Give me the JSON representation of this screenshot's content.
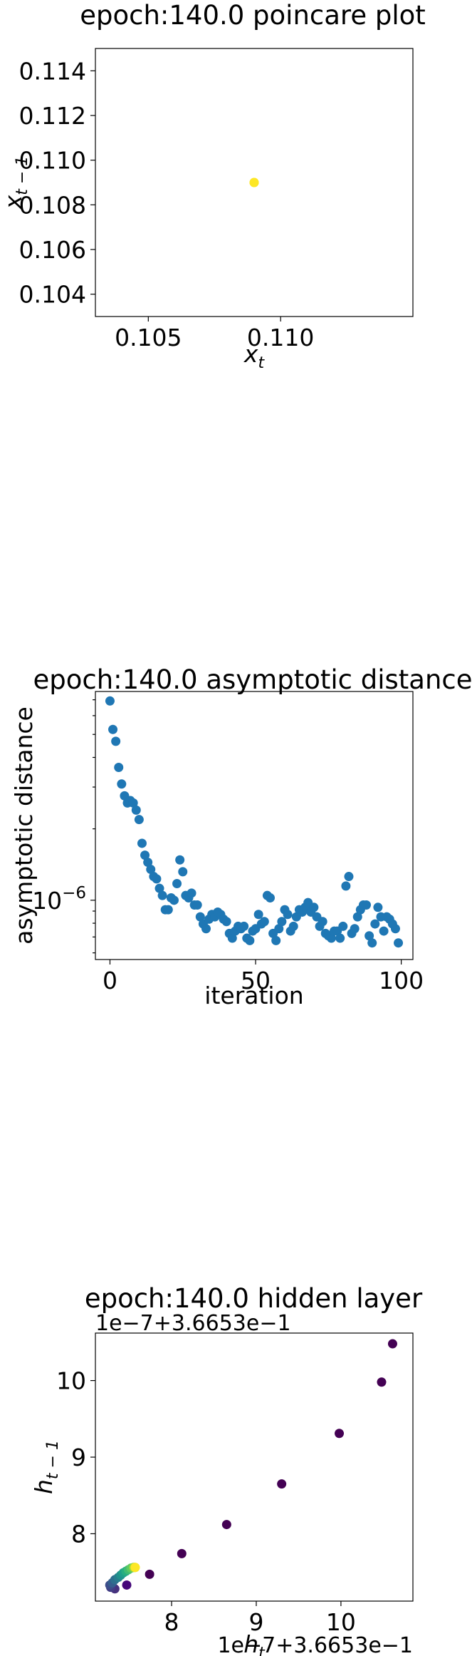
{
  "chart_data": [
    {
      "type": "scatter",
      "title": "epoch:140.0 poincare plot",
      "xlabel": "x_t",
      "ylabel": "x_{t-1}",
      "xlim": [
        0.103,
        0.115
      ],
      "ylim": [
        0.103,
        0.115
      ],
      "xticks": [
        0.105,
        0.11
      ],
      "xtick_labels": [
        "0.105",
        "0.110"
      ],
      "yticks": [
        0.104,
        0.106,
        0.108,
        0.11,
        0.112,
        0.114
      ],
      "ytick_labels": [
        "0.104",
        "0.106",
        "0.108",
        "0.110",
        "0.112",
        "0.114"
      ],
      "points": [
        {
          "x": 0.109,
          "y": 0.109,
          "color": "#fde725"
        },
        {
          "x": 0.109,
          "y": 0.109,
          "color": "#fde725"
        },
        {
          "x": 0.109,
          "y": 0.109,
          "color": "#fde725"
        }
      ],
      "grid": false
    },
    {
      "type": "scatter",
      "title": "epoch:140.0 asymptotic distance",
      "xlabel": "iteration",
      "ylabel": "asymptotic distance",
      "yscale": "log",
      "xlim": [
        -5,
        104
      ],
      "ylim_log10": [
        -6.25,
        -5.12
      ],
      "xticks": [
        0,
        50,
        100
      ],
      "xtick_labels": [
        "0",
        "50",
        "100"
      ],
      "ytick_label": "10^-6",
      "color": "#1f77b4",
      "y_log10": [
        -5.16,
        -5.28,
        -5.33,
        -5.44,
        -5.51,
        -5.56,
        -5.59,
        -5.58,
        -5.59,
        -5.62,
        -5.66,
        -5.76,
        -5.81,
        -5.84,
        -5.87,
        -5.9,
        -5.91,
        -5.95,
        -5.98,
        -6.04,
        -6.04,
        -5.99,
        -6.0,
        -5.93,
        -5.83,
        -5.88,
        -5.98,
        -5.99,
        -5.97,
        -6.02,
        -6.02,
        -6.07,
        -6.1,
        -6.12,
        -6.08,
        -6.06,
        -6.07,
        -6.05,
        -6.06,
        -6.08,
        -6.09,
        -6.14,
        -6.16,
        -6.13,
        -6.11,
        -6.12,
        -6.11,
        -6.16,
        -6.17,
        -6.13,
        -6.12,
        -6.06,
        -6.1,
        -6.09,
        -5.98,
        -5.99,
        -6.14,
        -6.17,
        -6.12,
        -6.09,
        -6.04,
        -6.06,
        -6.13,
        -6.11,
        -6.07,
        -6.04,
        -6.05,
        -6.03,
        -6.01,
        -6.05,
        -6.03,
        -6.07,
        -6.11,
        -6.09,
        -6.14,
        -6.15,
        -6.16,
        -6.13,
        -6.13,
        -6.16,
        -6.11,
        -5.94,
        -5.9,
        -6.14,
        -6.12,
        -6.07,
        -6.04,
        -6.02,
        -6.02,
        -6.15,
        -6.18,
        -6.1,
        -6.03,
        -6.07,
        -6.13,
        -6.07,
        -6.08,
        -6.1,
        -6.12,
        -6.18
      ],
      "grid": false
    },
    {
      "type": "scatter",
      "title": "epoch:140.0 hidden layer",
      "xlabel": "h_t",
      "ylabel": "h_{t-1}",
      "x_offset_label": "1e−7+3.6653e−1",
      "y_offset_label": "1e−7+3.6653e−1",
      "xlim": [
        7.1,
        10.85
      ],
      "ylim": [
        7.12,
        10.62
      ],
      "xticks": [
        8,
        9,
        10
      ],
      "xtick_labels": [
        "8",
        "9",
        "10"
      ],
      "yticks": [
        8,
        9,
        10
      ],
      "ytick_labels": [
        "8",
        "9",
        "10"
      ],
      "points": [
        {
          "x": 10.61,
          "y": 10.48,
          "color": "#440154"
        },
        {
          "x": 10.48,
          "y": 9.98,
          "color": "#440154"
        },
        {
          "x": 9.98,
          "y": 9.31,
          "color": "#440154"
        },
        {
          "x": 9.3,
          "y": 8.65,
          "color": "#440154"
        },
        {
          "x": 8.65,
          "y": 8.12,
          "color": "#440154"
        },
        {
          "x": 8.12,
          "y": 7.74,
          "color": "#440154"
        },
        {
          "x": 7.74,
          "y": 7.47,
          "color": "#440154"
        },
        {
          "x": 7.47,
          "y": 7.33,
          "color": "#45077a"
        },
        {
          "x": 7.33,
          "y": 7.28,
          "color": "#46327e"
        },
        {
          "x": 7.28,
          "y": 7.3,
          "color": "#433e85"
        },
        {
          "x": 7.27,
          "y": 7.33,
          "color": "#3d4d8a"
        },
        {
          "x": 7.3,
          "y": 7.36,
          "color": "#355e8d"
        },
        {
          "x": 7.33,
          "y": 7.4,
          "color": "#2e6f8e"
        },
        {
          "x": 7.37,
          "y": 7.43,
          "color": "#277f8e"
        },
        {
          "x": 7.4,
          "y": 7.46,
          "color": "#21918c"
        },
        {
          "x": 7.43,
          "y": 7.49,
          "color": "#1fa088"
        },
        {
          "x": 7.46,
          "y": 7.51,
          "color": "#28ae80"
        },
        {
          "x": 7.49,
          "y": 7.53,
          "color": "#3fbc73"
        },
        {
          "x": 7.52,
          "y": 7.55,
          "color": "#5ec962"
        },
        {
          "x": 7.55,
          "y": 7.56,
          "color": "#84d44b"
        },
        {
          "x": 7.56,
          "y": 7.56,
          "color": "#addc30"
        },
        {
          "x": 7.57,
          "y": 7.56,
          "color": "#d8e219"
        },
        {
          "x": 7.57,
          "y": 7.56,
          "color": "#fde725"
        }
      ],
      "grid": false
    }
  ]
}
